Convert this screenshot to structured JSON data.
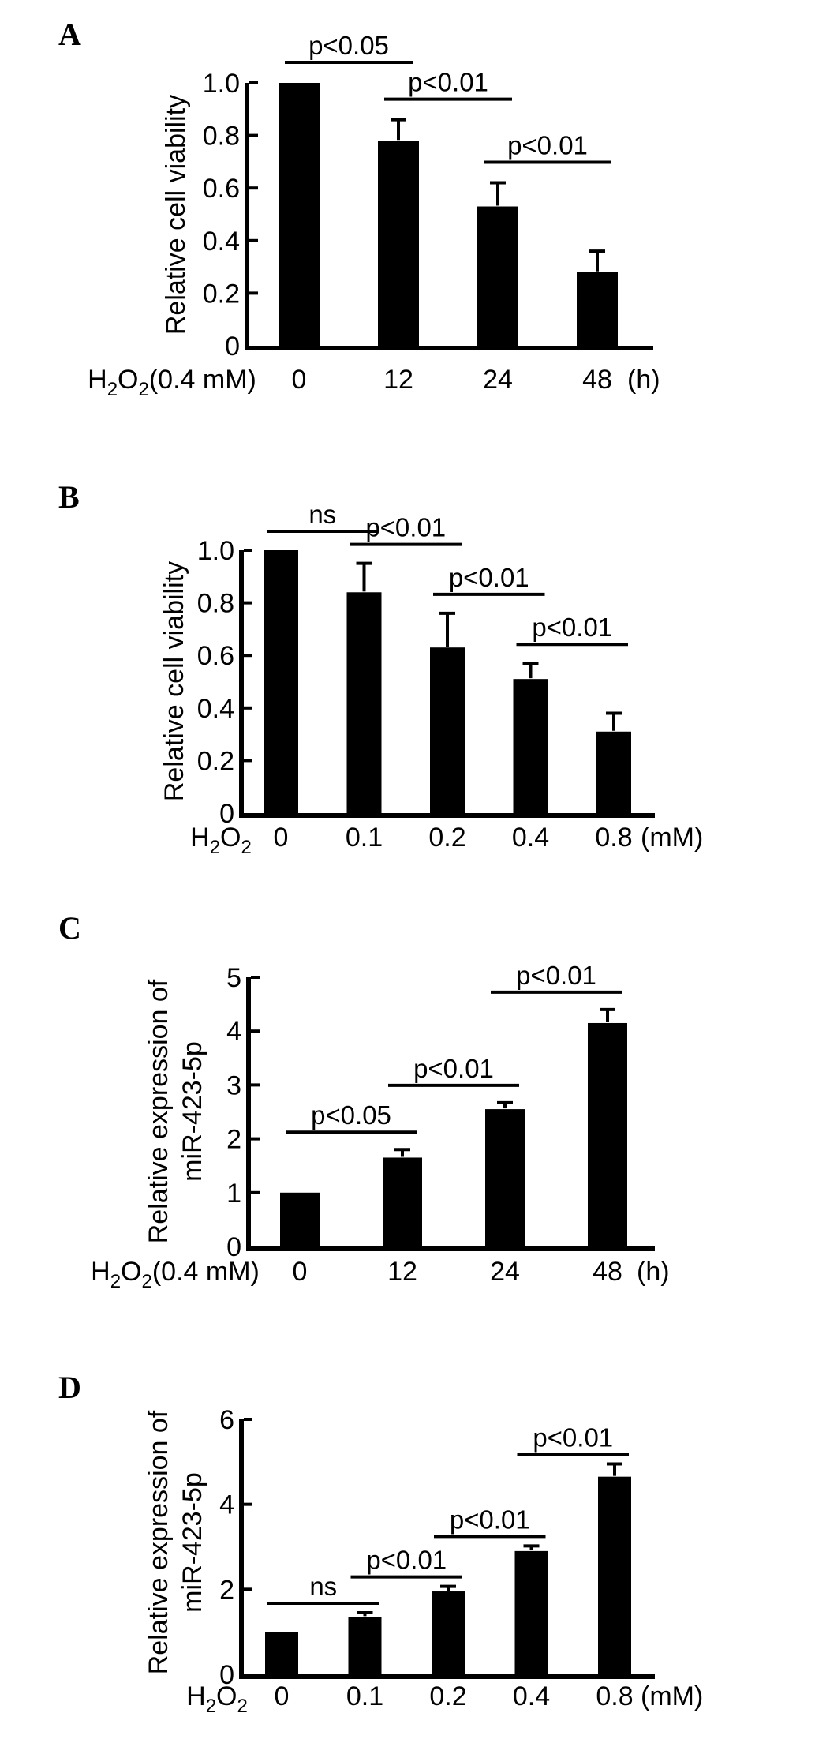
{
  "figure": {
    "background_color": "#ffffff",
    "bar_color": "#000000",
    "text_color": "#000000",
    "axis_color": "#000000"
  },
  "panels": [
    {
      "label": "A",
      "chart_data": {
        "type": "bar",
        "title": "",
        "ylabel": "Relative cell viability",
        "ylabel_lines": [
          "Relative cell viability"
        ],
        "xlabel_prefix_parts": [
          {
            "t": "H"
          },
          {
            "t": "2",
            "sub": true
          },
          {
            "t": "O"
          },
          {
            "t": "2",
            "sub": true
          },
          {
            "t": "(0.4 mM)"
          }
        ],
        "xlabel_prefix_text": "H2O2(0.4 mM)",
        "x_unit": "(h)",
        "categories": [
          "0",
          "12",
          "24",
          "48"
        ],
        "values": [
          1.0,
          0.78,
          0.53,
          0.28
        ],
        "errors": [
          0,
          0.08,
          0.09,
          0.08
        ],
        "ylim": [
          0,
          1.0
        ],
        "yticks": [
          0,
          0.2,
          0.4,
          0.6,
          0.8,
          1.0
        ],
        "ytick_labels": [
          "0",
          "0.2",
          "0.4",
          "0.6",
          "0.8",
          "1.0"
        ],
        "grid": false,
        "legend": null,
        "significance": [
          {
            "from": 0,
            "to": 1,
            "label": "p<0.05"
          },
          {
            "from": 1,
            "to": 2,
            "label": "p<0.01"
          },
          {
            "from": 2,
            "to": 3,
            "label": "p<0.01"
          }
        ]
      }
    },
    {
      "label": "B",
      "chart_data": {
        "type": "bar",
        "title": "",
        "ylabel": "Relative cell viability",
        "ylabel_lines": [
          "Relative cell viability"
        ],
        "xlabel_prefix_parts": [
          {
            "t": "H"
          },
          {
            "t": "2",
            "sub": true
          },
          {
            "t": "O"
          },
          {
            "t": "2",
            "sub": true
          }
        ],
        "xlabel_prefix_text": "H2O2",
        "x_unit": "(mM)",
        "categories": [
          "0",
          "0.1",
          "0.2",
          "0.4",
          "0.8"
        ],
        "values": [
          1.0,
          0.84,
          0.63,
          0.51,
          0.31
        ],
        "errors": [
          0,
          0.11,
          0.13,
          0.06,
          0.07
        ],
        "ylim": [
          0,
          1.0
        ],
        "yticks": [
          0,
          0.2,
          0.4,
          0.6,
          0.8,
          1.0
        ],
        "ytick_labels": [
          "0",
          "0.2",
          "0.4",
          "0.6",
          "0.8",
          "1.0"
        ],
        "grid": false,
        "legend": null,
        "significance": [
          {
            "from": 0,
            "to": 1,
            "label": "ns"
          },
          {
            "from": 1,
            "to": 2,
            "label": "p<0.01"
          },
          {
            "from": 2,
            "to": 3,
            "label": "p<0.01"
          },
          {
            "from": 3,
            "to": 4,
            "label": "p<0.01"
          }
        ]
      }
    },
    {
      "label": "C",
      "chart_data": {
        "type": "bar",
        "title": "",
        "ylabel": "Relative expression of miR-423-5p",
        "ylabel_lines": [
          "Relative expression of",
          "miR-423-5p"
        ],
        "xlabel_prefix_parts": [
          {
            "t": "H"
          },
          {
            "t": "2",
            "sub": true
          },
          {
            "t": "O"
          },
          {
            "t": "2",
            "sub": true
          },
          {
            "t": "(0.4 mM)"
          }
        ],
        "xlabel_prefix_text": "H2O2(0.4 mM)",
        "x_unit": "(h)",
        "categories": [
          "0",
          "12",
          "24",
          "48"
        ],
        "values": [
          1.0,
          1.65,
          2.55,
          4.15
        ],
        "errors": [
          0,
          0.15,
          0.12,
          0.25
        ],
        "ylim": [
          0,
          5
        ],
        "yticks": [
          0,
          1,
          2,
          3,
          4,
          5
        ],
        "ytick_labels": [
          "0",
          "1",
          "2",
          "3",
          "4",
          "5"
        ],
        "grid": false,
        "legend": null,
        "significance": [
          {
            "from": 0,
            "to": 1,
            "label": "p<0.05"
          },
          {
            "from": 1,
            "to": 2,
            "label": "p<0.01"
          },
          {
            "from": 2,
            "to": 3,
            "label": "p<0.01"
          }
        ]
      }
    },
    {
      "label": "D",
      "chart_data": {
        "type": "bar",
        "title": "",
        "ylabel": "Relative expression of miR-423-5p",
        "ylabel_lines": [
          "Relative expression of",
          "miR-423-5p"
        ],
        "xlabel_prefix_parts": [
          {
            "t": "H"
          },
          {
            "t": "2",
            "sub": true
          },
          {
            "t": "O"
          },
          {
            "t": "2",
            "sub": true
          }
        ],
        "xlabel_prefix_text": "H2O2",
        "x_unit": "(mM)",
        "categories": [
          "0",
          "0.1",
          "0.2",
          "0.4",
          "0.8"
        ],
        "values": [
          1.0,
          1.35,
          1.95,
          2.9,
          4.65
        ],
        "errors": [
          0,
          0.1,
          0.12,
          0.12,
          0.3
        ],
        "ylim": [
          0,
          6
        ],
        "yticks": [
          0,
          2,
          4,
          6
        ],
        "ytick_labels": [
          "0",
          "2",
          "4",
          "6"
        ],
        "grid": false,
        "legend": null,
        "significance": [
          {
            "from": 0,
            "to": 1,
            "label": "ns"
          },
          {
            "from": 1,
            "to": 2,
            "label": "p<0.01"
          },
          {
            "from": 2,
            "to": 3,
            "label": "p<0.01"
          },
          {
            "from": 3,
            "to": 4,
            "label": "p<0.01"
          }
        ]
      }
    }
  ]
}
